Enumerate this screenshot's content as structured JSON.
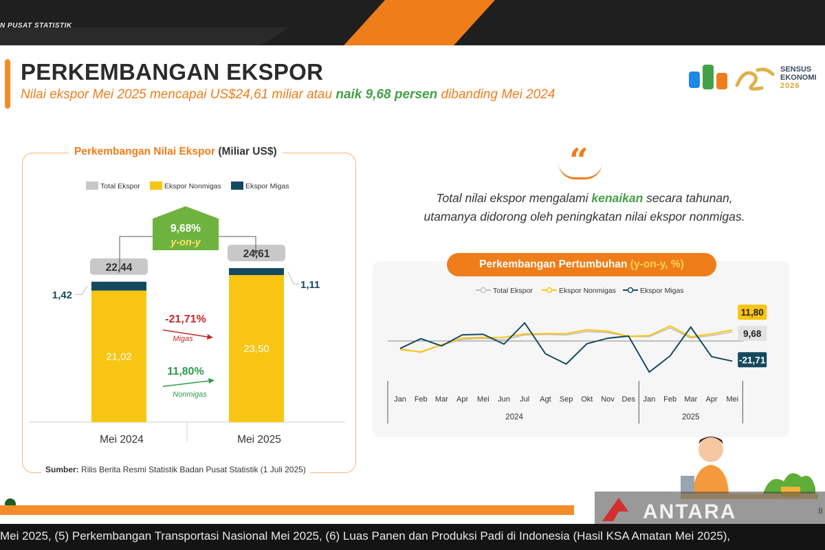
{
  "header": {
    "org_label": "N PUSAT STATISTIK",
    "title": "PERKEMBANGAN EKSPOR",
    "subtitle_part1": "Nilai ekspor Mei 2025 mencapai US$24,61 miliar atau ",
    "subtitle_highlight": "naik 9,68 persen",
    "subtitle_part2": " dibanding Mei 2024",
    "logo_text_line1": "SENSUS",
    "logo_text_line2": "EKONOMI",
    "logo_text_line3": "2026"
  },
  "left_panel": {
    "title_orange": "Perkembangan Nilai Ekspor",
    "title_dark": "(Miliar US$)",
    "source_label": "Sumber:",
    "source_text": "Rilis Berita Resmi Statistik Badan Pusat Statistik (1 Juli 2025)",
    "colors": {
      "total": "#c8c8c8",
      "nonmigas": "#f9c513",
      "migas": "#15495f",
      "yoy": "#6fb33f",
      "migas_change": "#c62828",
      "nonmigas_change": "#2e9a4a"
    }
  },
  "chart_data": [
    {
      "type": "bar",
      "stacked": true,
      "categories": [
        "Mei 2024",
        "Mei 2025"
      ],
      "series": [
        {
          "name": "Ekspor Nonmigas",
          "values": [
            21.02,
            23.5
          ],
          "labels": [
            "21,02",
            "23,50"
          ]
        },
        {
          "name": "Ekspor Migas",
          "values": [
            1.42,
            1.11
          ],
          "labels": [
            "1,42",
            "1,11"
          ]
        }
      ],
      "totals": {
        "name": "Total Ekspor",
        "values": [
          22.44,
          24.61
        ],
        "labels": [
          "22,44",
          "24,61"
        ]
      },
      "legend": [
        "Total Ekspor",
        "Ekspor Nonmigas",
        "Ekspor Migas"
      ],
      "yoy_label": "9,68%",
      "yoy_sub": "y-on-y",
      "migas_change": "-21,71%",
      "migas_change_label": "Migas",
      "nonmigas_change": "11,80%",
      "nonmigas_change_label": "Nonmigas",
      "ylim": [
        0,
        26
      ]
    },
    {
      "type": "line",
      "title_main": "Perkembangan Pertumbuhan",
      "title_paren": "(y-on-y, %)",
      "x": [
        "Jan",
        "Feb",
        "Mar",
        "Apr",
        "Mei",
        "Jun",
        "Jul",
        "Agt",
        "Sep",
        "Okt",
        "Nov",
        "Des",
        "Jan",
        "Feb",
        "Mar",
        "Apr",
        "Mei"
      ],
      "year_groups": [
        {
          "label": "2024"
        },
        {
          "label": "2025"
        }
      ],
      "series": [
        {
          "name": "Total Ekspor",
          "values": [
            -8.1,
            -12.3,
            -4.2,
            1.7,
            2.9,
            1.2,
            6.5,
            7.1,
            6.4,
            10.2,
            9.1,
            4.8,
            4.7,
            14.1,
            3.2,
            5.8,
            9.68
          ],
          "color": "#bdbdbd"
        },
        {
          "name": "Ekspor Nonmigas",
          "values": [
            -9.2,
            -11.8,
            -3.9,
            3.1,
            3.8,
            3.9,
            7.6,
            7.9,
            8.0,
            12.0,
            10.5,
            5.0,
            5.7,
            16.2,
            4.5,
            7.6,
            11.8
          ],
          "color": "#f9c513"
        },
        {
          "name": "Ekspor Migas",
          "values": [
            -8.0,
            2.5,
            -5.3,
            6.7,
            7.2,
            -3.4,
            19.5,
            -13.8,
            -24.8,
            -2.9,
            3.0,
            5.3,
            -33.5,
            -16.1,
            15.0,
            -16.8,
            -21.71
          ],
          "color": "#15495f"
        }
      ],
      "end_labels": [
        "11,80",
        "9,68",
        "-21,71"
      ],
      "ylim": [
        -38,
        24
      ]
    }
  ],
  "quote": {
    "line1_a": "Total nilai ekspor mengalami ",
    "line1_hl": "kenaikan",
    "line1_b": " secara tahunan,",
    "line2": "utamanya didorong oleh peningkatan nilai ekspor nonmigas."
  },
  "footer": {
    "page_number": "8",
    "ticker": "Mei 2025, (5) Perkembangan Transportasi Nasional Mei 2025, (6) Luas Panen dan Produksi Padi di Indonesia (Hasil KSA Amatan Mei 2025),",
    "watermark": "ANTARA"
  }
}
